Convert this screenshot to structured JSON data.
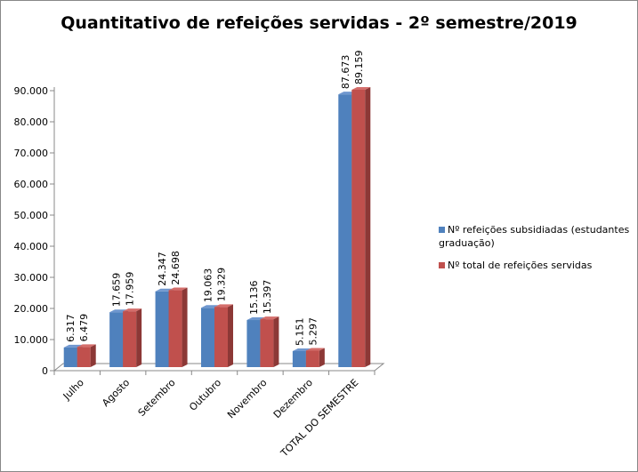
{
  "chart_data": {
    "type": "bar",
    "title": "Quantitativo de refeições servidas - 2º semestre/2019",
    "categories": [
      "Julho",
      "Agosto",
      "Setembro",
      "Outubro",
      "Novembro",
      "Dezembro",
      "TOTAL DO SEMESTRE"
    ],
    "series": [
      {
        "name": "Nº refeições subsidiadas (estudantes graduação)",
        "color": "#4f81bd",
        "values": [
          6317,
          17659,
          24347,
          19063,
          15136,
          5151,
          87673
        ],
        "labels": [
          "6.317",
          "17.659",
          "24.347",
          "19.063",
          "15.136",
          "5.151",
          "87.673"
        ]
      },
      {
        "name": "Nº total  de refeições servidas",
        "color": "#c0504d",
        "values": [
          6479,
          17959,
          24698,
          19329,
          15397,
          5297,
          89159
        ],
        "labels": [
          "6.479",
          "17.959",
          "24.698",
          "19.329",
          "15.397",
          "5.297",
          "89.159"
        ]
      }
    ],
    "ylim": [
      0,
      90000
    ],
    "yticks": [
      0,
      10000,
      20000,
      30000,
      40000,
      50000,
      60000,
      70000,
      80000,
      90000
    ],
    "ytick_labels": [
      "0",
      "10.000",
      "20.000",
      "30.000",
      "40.000",
      "50.000",
      "60.000",
      "70.000",
      "80.000",
      "90.000"
    ],
    "grid": false,
    "legend": "right",
    "style": "3d-clustered-column"
  }
}
